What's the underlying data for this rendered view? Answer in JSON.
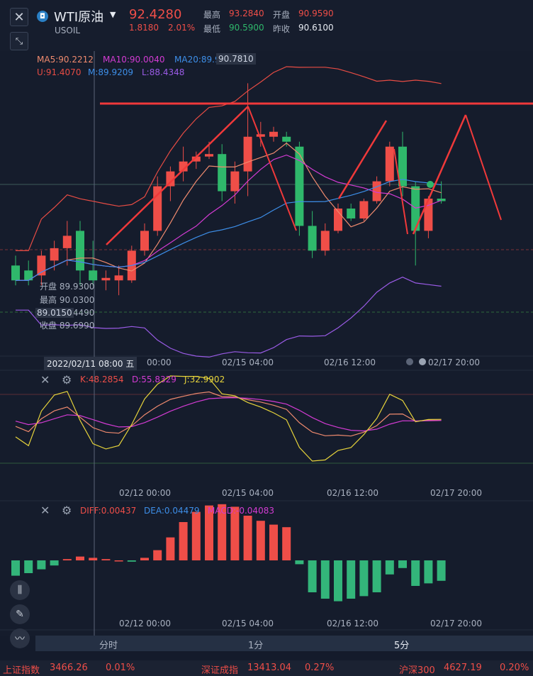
{
  "header": {
    "symbol_name": "WTI原油",
    "symbol_code": "USOIL",
    "last_price": "92.4280",
    "change": "1.8180",
    "change_pct": "2.01%",
    "high_label": "最高",
    "high_value": "93.2840",
    "open_label": "开盘",
    "open_value": "90.9590",
    "low_label": "最低",
    "low_value": "90.5900",
    "prev_label": "昨收",
    "prev_value": "90.6100"
  },
  "main_chart": {
    "ma5": "MA5:90.2212",
    "ma10": "MA10:90.0040",
    "ma20": "MA20:89.9578",
    "ma20_overlap": "90.7810",
    "boll_u": "U:91.4070",
    "boll_m": "M:89.9209",
    "boll_l": "L:88.4348",
    "tooltip": {
      "open": "开盘 89.9300",
      "high": "最高 90.0300",
      "low": "最低 89.4490",
      "low_overlap": "89.0150",
      "close": "收盘 89.6990"
    },
    "crosshair_time": "2022/02/11 08:00 五"
  },
  "time_axis": {
    "ticks": [
      "02/12 00:00",
      "02/15 04:00",
      "02/16 12:00",
      "02/17 20:00"
    ],
    "main_first_tick_partial": "00:00"
  },
  "kdj": {
    "k": "K:48.2854",
    "d": "D:55.8329",
    "j": "J:32.9902"
  },
  "macd": {
    "diff": "DIFF:0.00437",
    "dea": "DEA:0.04479",
    "macd": "MACD:-0.04083"
  },
  "timeframes": {
    "minute": "分时",
    "one_min": "1分",
    "five_min": "5分"
  },
  "ticker": {
    "sh_name": "上证指数",
    "sh_value": "3466.26",
    "sh_pct": "0.01%",
    "sz_name": "深证成指",
    "sz_value": "13413.04",
    "sz_pct": "0.27%",
    "hs_name": "沪深300",
    "hs_value": "4627.19",
    "hs_pct": "0.20%"
  },
  "colors": {
    "up": "#ef4e48",
    "down": "#2fb86b",
    "ma5": "#ef8a6e",
    "ma10": "#d33bd3",
    "ma20": "#3d8ee8",
    "boll_u": "#e74c44",
    "boll_l": "#9a5be6"
  },
  "icons": {
    "close": "close-icon",
    "expand": "expand-icon",
    "dropdown": "chevron-down-icon",
    "settings": "gear-icon",
    "candle": "candlestick-icon",
    "pen": "pen-icon",
    "indicator": "indicator-icon"
  },
  "chart_data": {
    "type": "candlestick",
    "symbol": "USOIL",
    "interval": "5分",
    "x_ticks": [
      "02/12 00:00",
      "02/15 04:00",
      "02/16 12:00",
      "02/17 20:00"
    ],
    "crosshair_candle": {
      "time": "2022/02/11 08:00",
      "open": 89.93,
      "high": 90.03,
      "low": 89.449,
      "close": 89.699
    },
    "last": {
      "open": 90.959,
      "high": 93.284,
      "low": 90.59,
      "close": 92.428
    },
    "candles": [
      {
        "o": 89.6,
        "h": 89.8,
        "l": 89.2,
        "c": 89.3
      },
      {
        "o": 89.5,
        "h": 89.7,
        "l": 89.2,
        "c": 89.3
      },
      {
        "o": 89.4,
        "h": 89.9,
        "l": 89.2,
        "c": 89.8
      },
      {
        "o": 89.7,
        "h": 90.1,
        "l": 89.5,
        "c": 89.95
      },
      {
        "o": 89.95,
        "h": 90.5,
        "l": 89.6,
        "c": 90.2
      },
      {
        "o": 90.3,
        "h": 90.5,
        "l": 89.2,
        "c": 89.5
      },
      {
        "o": 89.5,
        "h": 90.1,
        "l": 89.2,
        "c": 89.3
      },
      {
        "o": 89.3,
        "h": 89.5,
        "l": 89.1,
        "c": 89.35
      },
      {
        "o": 89.3,
        "h": 89.6,
        "l": 89.0,
        "c": 89.4
      },
      {
        "o": 89.3,
        "h": 90.0,
        "l": 89.25,
        "c": 89.9
      },
      {
        "o": 89.9,
        "h": 90.45,
        "l": 89.8,
        "c": 90.3
      },
      {
        "o": 90.3,
        "h": 91.4,
        "l": 90.2,
        "c": 91.2
      },
      {
        "o": 91.2,
        "h": 91.6,
        "l": 90.9,
        "c": 91.5
      },
      {
        "o": 91.5,
        "h": 92.0,
        "l": 91.3,
        "c": 91.7
      },
      {
        "o": 91.7,
        "h": 91.9,
        "l": 91.55,
        "c": 91.8
      },
      {
        "o": 91.8,
        "h": 92.1,
        "l": 91.75,
        "c": 91.85
      },
      {
        "o": 91.85,
        "h": 92.05,
        "l": 90.9,
        "c": 91.1
      },
      {
        "o": 91.1,
        "h": 91.7,
        "l": 90.85,
        "c": 91.5
      },
      {
        "o": 91.5,
        "h": 93.28,
        "l": 91.0,
        "c": 92.2
      },
      {
        "o": 92.2,
        "h": 92.5,
        "l": 92.0,
        "c": 92.25
      },
      {
        "o": 92.2,
        "h": 92.4,
        "l": 92.1,
        "c": 92.3
      },
      {
        "o": 92.2,
        "h": 92.3,
        "l": 92.0,
        "c": 92.1
      },
      {
        "o": 92.0,
        "h": 92.1,
        "l": 90.2,
        "c": 90.4
      },
      {
        "o": 90.4,
        "h": 90.7,
        "l": 89.75,
        "c": 89.9
      },
      {
        "o": 89.9,
        "h": 90.45,
        "l": 89.8,
        "c": 90.3
      },
      {
        "o": 90.3,
        "h": 90.85,
        "l": 90.25,
        "c": 90.75
      },
      {
        "o": 90.75,
        "h": 90.85,
        "l": 90.5,
        "c": 90.55
      },
      {
        "o": 90.55,
        "h": 90.95,
        "l": 90.5,
        "c": 90.9
      },
      {
        "o": 90.9,
        "h": 91.4,
        "l": 90.85,
        "c": 91.3
      },
      {
        "o": 91.3,
        "h": 92.1,
        "l": 91.2,
        "c": 92.0
      },
      {
        "o": 92.0,
        "h": 92.3,
        "l": 91.0,
        "c": 91.2
      },
      {
        "o": 91.2,
        "h": 91.3,
        "l": 89.6,
        "c": 90.3
      },
      {
        "o": 90.3,
        "h": 91.0,
        "l": 90.15,
        "c": 90.95
      },
      {
        "o": 90.95,
        "h": 91.3,
        "l": 90.85,
        "c": 90.9
      }
    ],
    "macd_hist": [
      -0.12,
      -0.1,
      -0.07,
      -0.04,
      0.01,
      0.03,
      0.02,
      0.01,
      0.0,
      -0.01,
      0.02,
      0.08,
      0.18,
      0.3,
      0.38,
      0.43,
      0.44,
      0.42,
      0.35,
      0.31,
      0.28,
      0.26,
      -0.03,
      -0.25,
      -0.3,
      -0.32,
      -0.3,
      -0.28,
      -0.25,
      -0.11,
      -0.06,
      -0.2,
      -0.18,
      -0.16
    ],
    "macd_ylim": [
      -0.45,
      0.5
    ]
  }
}
